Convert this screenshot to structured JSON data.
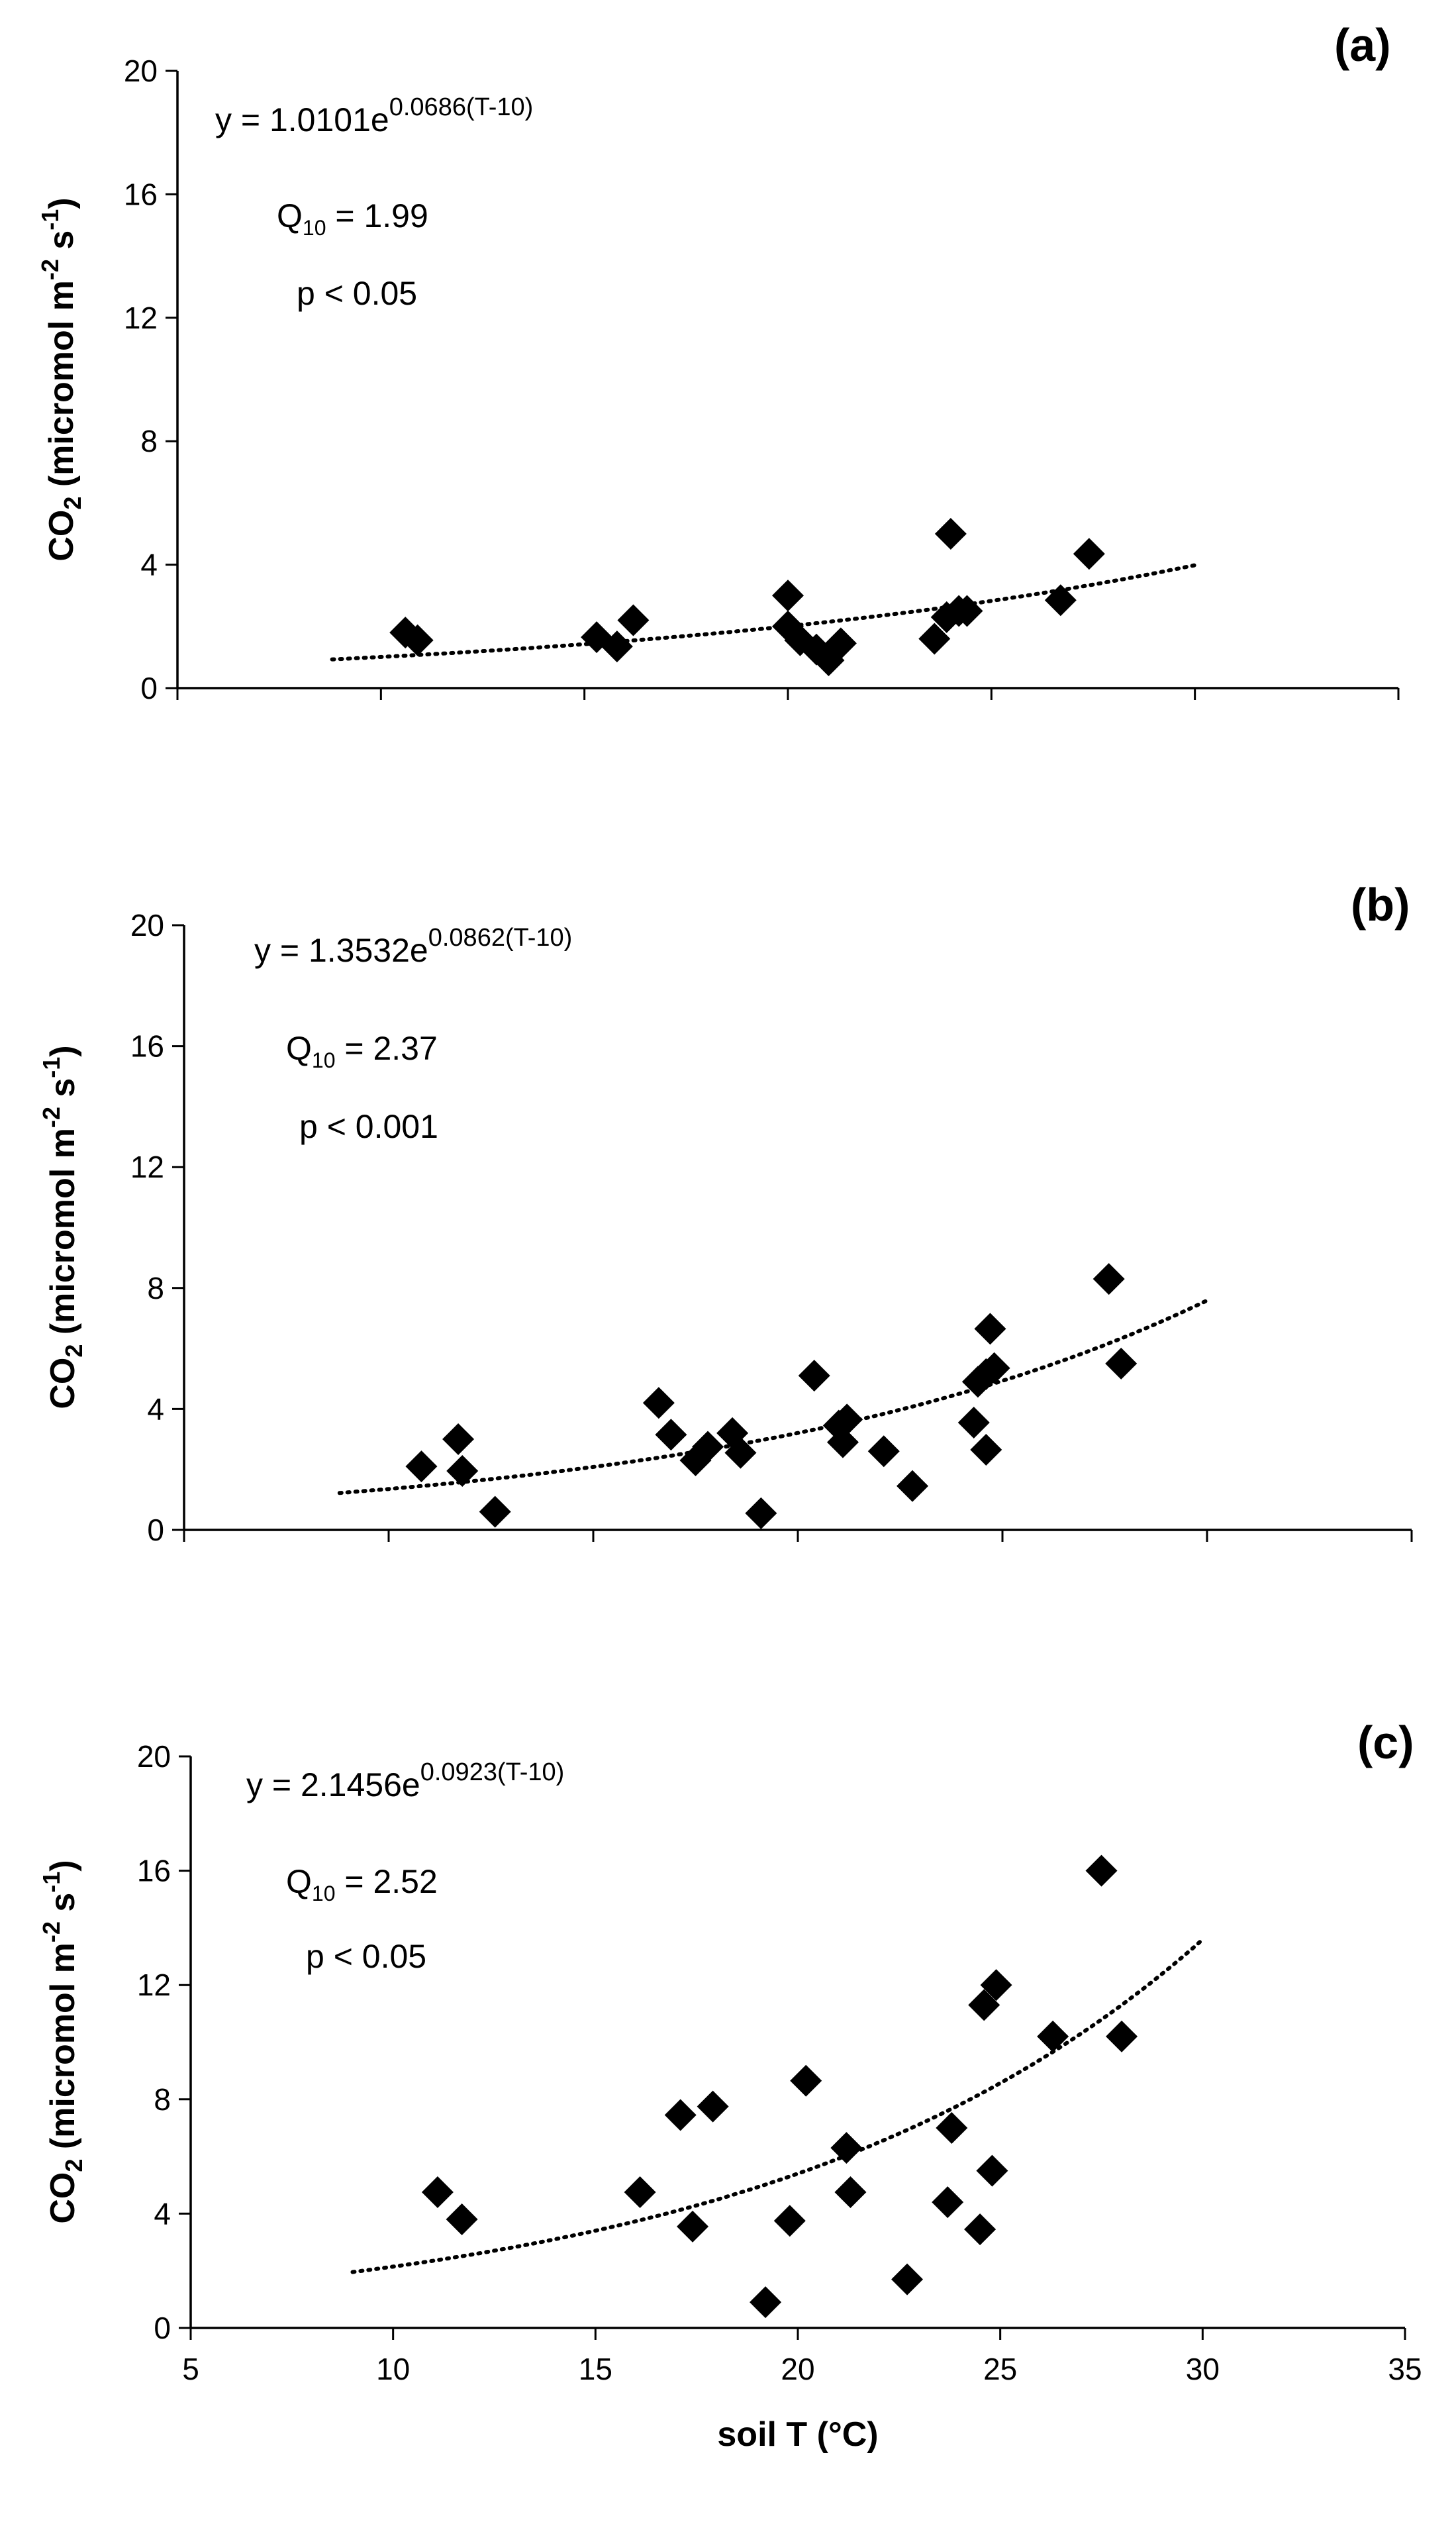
{
  "chart_data": [
    {
      "type": "scatter",
      "panel_label": "(a)",
      "equation": {
        "prefix": "y = 1.0101e",
        "exponent": "0.0686(T-10)"
      },
      "q10": {
        "label": "Q",
        "subscript": "10",
        "value": " = 1.99"
      },
      "p_value": "p < 0.05",
      "xlabel": "",
      "ylabel": {
        "prefix": "CO",
        "sub": "2",
        "mid": " (micromol m",
        "sup1": "-2",
        "mid2": " s",
        "sup2": "-1",
        "suffix": ")"
      },
      "xlim": [
        5,
        35
      ],
      "ylim": [
        0,
        20
      ],
      "xticks": [
        5,
        10,
        15,
        20,
        25,
        30,
        35
      ],
      "yticks": [
        0,
        4,
        8,
        12,
        16,
        20
      ],
      "show_xtick_labels": false,
      "trendline": {
        "a": 1.0101,
        "b": 0.0686,
        "x_range": [
          8.8,
          30
        ]
      },
      "points": [
        [
          10.6,
          1.8
        ],
        [
          10.9,
          1.55
        ],
        [
          15.3,
          1.65
        ],
        [
          15.8,
          1.35
        ],
        [
          16.2,
          2.2
        ],
        [
          20.0,
          3.0
        ],
        [
          20.0,
          2.0
        ],
        [
          20.3,
          1.55
        ],
        [
          20.7,
          1.25
        ],
        [
          21.0,
          0.9
        ],
        [
          21.3,
          1.45
        ],
        [
          23.6,
          1.6
        ],
        [
          23.9,
          2.3
        ],
        [
          24.0,
          5.0
        ],
        [
          24.2,
          2.5
        ],
        [
          24.4,
          2.5
        ],
        [
          26.7,
          2.85
        ],
        [
          27.4,
          4.35
        ]
      ]
    },
    {
      "type": "scatter",
      "panel_label": "(b)",
      "equation": {
        "prefix": "y = 1.3532e",
        "exponent": "0.0862(T-10)"
      },
      "q10": {
        "label": "Q",
        "subscript": "10",
        "value": " = 2.37"
      },
      "p_value": "p < 0.001",
      "xlabel": "",
      "ylabel": {
        "prefix": "CO",
        "sub": "2",
        "mid": " (micromol m",
        "sup1": "-2",
        "mid2": " s",
        "sup2": "-1",
        "suffix": ")"
      },
      "xlim": [
        5,
        35
      ],
      "ylim": [
        0,
        20
      ],
      "xticks": [
        5,
        10,
        15,
        20,
        25,
        30,
        35
      ],
      "yticks": [
        0,
        4,
        8,
        12,
        16,
        20
      ],
      "show_xtick_labels": false,
      "trendline": {
        "a": 1.3532,
        "b": 0.0862,
        "x_range": [
          8.8,
          30
        ]
      },
      "points": [
        [
          10.8,
          2.1
        ],
        [
          11.7,
          3.0
        ],
        [
          11.8,
          1.95
        ],
        [
          12.6,
          0.6
        ],
        [
          16.6,
          4.2
        ],
        [
          16.9,
          3.15
        ],
        [
          17.5,
          2.3
        ],
        [
          17.8,
          2.75
        ],
        [
          18.4,
          3.2
        ],
        [
          18.6,
          2.55
        ],
        [
          19.1,
          0.55
        ],
        [
          20.4,
          5.1
        ],
        [
          21.0,
          3.45
        ],
        [
          21.1,
          2.9
        ],
        [
          21.2,
          3.65
        ],
        [
          22.1,
          2.6
        ],
        [
          22.8,
          1.45
        ],
        [
          24.3,
          3.55
        ],
        [
          24.4,
          4.9
        ],
        [
          24.6,
          5.15
        ],
        [
          24.6,
          2.65
        ],
        [
          24.7,
          6.65
        ],
        [
          24.8,
          5.35
        ],
        [
          27.6,
          8.3
        ],
        [
          27.9,
          5.5
        ]
      ]
    },
    {
      "type": "scatter",
      "panel_label": "(c)",
      "equation": {
        "prefix": "y = 2.1456e",
        "exponent": "0.0923(T-10)"
      },
      "q10": {
        "label": "Q",
        "subscript": "10",
        "value": " = 2.52"
      },
      "p_value": "p < 0.05",
      "xlabel": "soil T (°C)",
      "ylabel": {
        "prefix": "CO",
        "sub": "2",
        "mid": " (micromol m",
        "sup1": "-2",
        "mid2": " s",
        "sup2": "-1",
        "suffix": ")"
      },
      "xlim": [
        5,
        35
      ],
      "ylim": [
        0,
        20
      ],
      "xticks": [
        5,
        10,
        15,
        20,
        25,
        30,
        35
      ],
      "yticks": [
        0,
        4,
        8,
        12,
        16,
        20
      ],
      "show_xtick_labels": true,
      "trendline": {
        "a": 2.1456,
        "b": 0.0923,
        "x_range": [
          9.0,
          30
        ]
      },
      "points": [
        [
          11.1,
          4.75
        ],
        [
          11.7,
          3.8
        ],
        [
          16.1,
          4.75
        ],
        [
          17.1,
          7.45
        ],
        [
          17.4,
          3.55
        ],
        [
          17.9,
          7.75
        ],
        [
          19.2,
          0.9
        ],
        [
          19.8,
          3.75
        ],
        [
          20.2,
          8.65
        ],
        [
          21.2,
          6.3
        ],
        [
          21.3,
          4.75
        ],
        [
          22.7,
          1.7
        ],
        [
          23.7,
          4.4
        ],
        [
          23.8,
          7.0
        ],
        [
          24.5,
          3.45
        ],
        [
          24.6,
          11.3
        ],
        [
          24.8,
          5.5
        ],
        [
          24.9,
          12.0
        ],
        [
          26.3,
          10.2
        ],
        [
          27.5,
          16.0
        ],
        [
          28.0,
          10.2
        ]
      ]
    }
  ]
}
